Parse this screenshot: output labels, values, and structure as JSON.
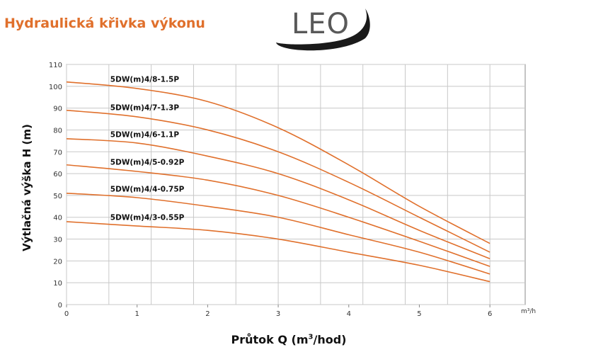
{
  "page_title": "Hydraulická křivka výkonu",
  "logo": {
    "text": "LEO",
    "arc_color": "#1a1a1a",
    "text_color": "#595959"
  },
  "accent_color": "#e0702c",
  "chart_data": {
    "type": "line",
    "xlabel_prefix": "Průtok Q (m",
    "xlabel_sup": "3",
    "xlabel_suffix": "/hod)",
    "ylabel": "Výtlačná výška H (m)",
    "x_unit": "m³/h",
    "xlim": [
      0,
      6.5
    ],
    "ylim": [
      0,
      110
    ],
    "x_ticks": [
      0,
      1,
      2,
      3,
      4,
      5,
      6
    ],
    "y_ticks": [
      0,
      10,
      20,
      30,
      40,
      50,
      60,
      70,
      80,
      90,
      100,
      110
    ],
    "grid": true,
    "line_color": "#e0702c",
    "series": [
      {
        "name": "5DW(m)4/8-1.5P",
        "x": [
          0,
          1,
          2,
          3,
          4,
          5,
          6
        ],
        "y": [
          102,
          99,
          93,
          81,
          64,
          45,
          28
        ]
      },
      {
        "name": "5DW(m)4/7-1.3P",
        "x": [
          0,
          1,
          2,
          3,
          4,
          5,
          6
        ],
        "y": [
          89,
          86,
          80,
          70,
          56,
          40,
          24
        ]
      },
      {
        "name": "5DW(m)4/6-1.1P",
        "x": [
          0,
          1,
          2,
          3,
          4,
          5,
          6
        ],
        "y": [
          76,
          74,
          68,
          60,
          48,
          34,
          21
        ]
      },
      {
        "name": "5DW(m)4/5-0.92P",
        "x": [
          0,
          1,
          2,
          3,
          4,
          5,
          6
        ],
        "y": [
          64,
          61,
          57,
          50,
          40,
          29,
          17.5
        ]
      },
      {
        "name": "5DW(m)4/4-0.75P",
        "x": [
          0,
          1,
          2,
          3,
          4,
          5,
          6
        ],
        "y": [
          51,
          49,
          45,
          40,
          32,
          24,
          14
        ]
      },
      {
        "name": "5DW(m)4/3-0.55P",
        "x": [
          0,
          1,
          2,
          3,
          4,
          5,
          6
        ],
        "y": [
          38,
          36,
          34,
          30,
          24,
          18,
          10.5
        ]
      }
    ]
  }
}
